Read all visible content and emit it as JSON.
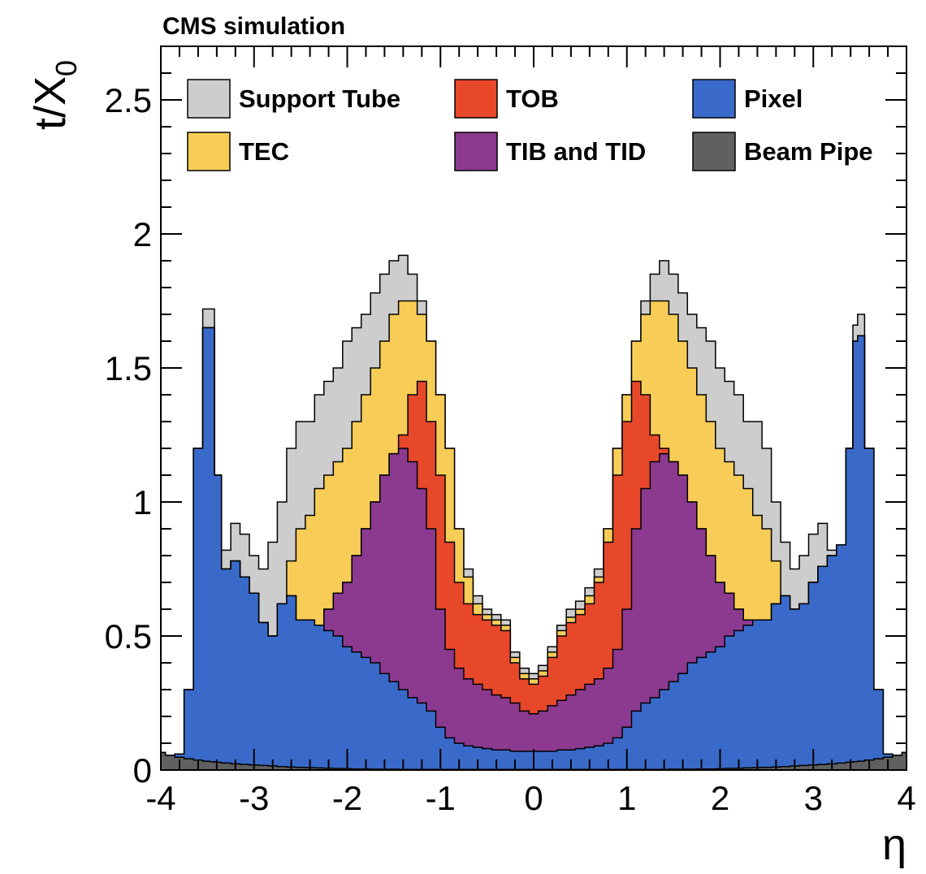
{
  "chart_data": {
    "type": "area",
    "stacked": true,
    "title": "CMS simulation",
    "xlabel": "η",
    "ylabel": {
      "main": "t/X",
      "subscript": "0"
    },
    "xlim": [
      -4,
      4
    ],
    "ylim": [
      0,
      2.7
    ],
    "x_tick_labels": [
      "-4",
      "-3",
      "-2",
      "-1",
      "0",
      "1",
      "2",
      "3",
      "4"
    ],
    "y_tick_labels": [
      "0",
      "0.5",
      "1",
      "1.5",
      "2",
      "2.5"
    ],
    "y_tick_values": [
      0,
      0.5,
      1,
      1.5,
      2,
      2.5
    ],
    "grid": false,
    "legend_position": "top",
    "x": [
      -4.0,
      -3.9,
      -3.8,
      -3.7,
      -3.6,
      -3.5,
      -3.45,
      -3.4,
      -3.3,
      -3.2,
      -3.1,
      -3.0,
      -2.9,
      -2.8,
      -2.7,
      -2.6,
      -2.5,
      -2.4,
      -2.3,
      -2.2,
      -2.1,
      -2.0,
      -1.9,
      -1.8,
      -1.7,
      -1.6,
      -1.5,
      -1.4,
      -1.3,
      -1.2,
      -1.1,
      -1.0,
      -0.9,
      -0.8,
      -0.7,
      -0.6,
      -0.5,
      -0.4,
      -0.3,
      -0.2,
      -0.1,
      0.0,
      0.1,
      0.2,
      0.3,
      0.4,
      0.5,
      0.6,
      0.7,
      0.8,
      0.9,
      1.0,
      1.1,
      1.2,
      1.3,
      1.4,
      1.5,
      1.6,
      1.7,
      1.8,
      1.9,
      2.0,
      2.1,
      2.2,
      2.3,
      2.4,
      2.5,
      2.6,
      2.7,
      2.8,
      2.9,
      3.0,
      3.1,
      3.2,
      3.3,
      3.4,
      3.45,
      3.5,
      3.6,
      3.7,
      3.8,
      3.9,
      4.0
    ],
    "series": [
      {
        "name": "Beam Pipe",
        "color": "#606060",
        "cumulative": [
          0.065,
          0.055,
          0.048,
          0.042,
          0.037,
          0.033,
          0.031,
          0.029,
          0.026,
          0.023,
          0.021,
          0.019,
          0.017,
          0.015,
          0.013,
          0.011,
          0.01,
          0.009,
          0.008,
          0.007,
          0.006,
          0.005,
          0.004,
          0.004,
          0.003,
          0.003,
          0.003,
          0.002,
          0.002,
          0.002,
          0.002,
          0.002,
          0.002,
          0.002,
          0.002,
          0.002,
          0.002,
          0.002,
          0.002,
          0.002,
          0.002,
          0.002,
          0.002,
          0.002,
          0.002,
          0.002,
          0.002,
          0.002,
          0.002,
          0.002,
          0.002,
          0.002,
          0.002,
          0.002,
          0.002,
          0.002,
          0.003,
          0.003,
          0.003,
          0.004,
          0.004,
          0.005,
          0.006,
          0.007,
          0.008,
          0.009,
          0.01,
          0.011,
          0.013,
          0.015,
          0.017,
          0.019,
          0.021,
          0.023,
          0.026,
          0.029,
          0.031,
          0.033,
          0.037,
          0.042,
          0.048,
          0.055,
          0.065
        ]
      },
      {
        "name": "Pixel",
        "color": "#3a6ac9",
        "cumulative": [
          0.065,
          0.055,
          0.06,
          0.3,
          1.2,
          1.65,
          1.65,
          1.1,
          0.75,
          0.78,
          0.72,
          0.66,
          0.55,
          0.5,
          0.62,
          0.65,
          0.56,
          0.56,
          0.54,
          0.52,
          0.5,
          0.46,
          0.44,
          0.42,
          0.4,
          0.36,
          0.33,
          0.3,
          0.27,
          0.25,
          0.22,
          0.16,
          0.12,
          0.1,
          0.09,
          0.085,
          0.08,
          0.075,
          0.075,
          0.07,
          0.07,
          0.07,
          0.07,
          0.07,
          0.075,
          0.075,
          0.08,
          0.085,
          0.09,
          0.1,
          0.12,
          0.16,
          0.22,
          0.25,
          0.27,
          0.3,
          0.33,
          0.36,
          0.4,
          0.42,
          0.44,
          0.46,
          0.5,
          0.52,
          0.54,
          0.56,
          0.56,
          0.62,
          0.65,
          0.6,
          0.62,
          0.7,
          0.76,
          0.8,
          0.84,
          1.2,
          1.6,
          1.62,
          1.2,
          0.3,
          0.06,
          0.055,
          0.065
        ]
      },
      {
        "name": "TIB and TID",
        "color": "#8b3a90",
        "cumulative": [
          0.065,
          0.055,
          0.06,
          0.3,
          1.2,
          1.65,
          1.65,
          1.1,
          0.75,
          0.78,
          0.72,
          0.66,
          0.55,
          0.5,
          0.62,
          0.65,
          0.56,
          0.56,
          0.54,
          0.6,
          0.66,
          0.7,
          0.8,
          0.9,
          1.0,
          1.1,
          1.18,
          1.2,
          1.15,
          1.05,
          0.9,
          0.6,
          0.45,
          0.38,
          0.34,
          0.32,
          0.3,
          0.28,
          0.27,
          0.25,
          0.22,
          0.21,
          0.22,
          0.24,
          0.26,
          0.28,
          0.3,
          0.32,
          0.34,
          0.38,
          0.45,
          0.6,
          0.9,
          1.05,
          1.15,
          1.18,
          1.15,
          1.1,
          1.0,
          0.9,
          0.8,
          0.7,
          0.66,
          0.6,
          0.56,
          0.56,
          0.56,
          0.62,
          0.65,
          0.6,
          0.62,
          0.7,
          0.76,
          0.8,
          0.84,
          1.2,
          1.6,
          1.62,
          1.2,
          0.3,
          0.06,
          0.055,
          0.065
        ]
      },
      {
        "name": "TOB",
        "color": "#e8482a",
        "cumulative": [
          0.065,
          0.055,
          0.06,
          0.3,
          1.2,
          1.65,
          1.65,
          1.1,
          0.75,
          0.78,
          0.72,
          0.66,
          0.55,
          0.5,
          0.62,
          0.65,
          0.56,
          0.56,
          0.54,
          0.6,
          0.66,
          0.7,
          0.8,
          0.9,
          1.0,
          1.1,
          1.18,
          1.25,
          1.4,
          1.45,
          1.3,
          1.1,
          0.85,
          0.7,
          0.62,
          0.58,
          0.56,
          0.54,
          0.52,
          0.4,
          0.34,
          0.32,
          0.35,
          0.42,
          0.5,
          0.55,
          0.58,
          0.62,
          0.7,
          0.85,
          1.1,
          1.3,
          1.45,
          1.4,
          1.25,
          1.2,
          1.15,
          1.1,
          1.0,
          0.9,
          0.8,
          0.7,
          0.66,
          0.6,
          0.56,
          0.56,
          0.56,
          0.62,
          0.65,
          0.6,
          0.62,
          0.7,
          0.76,
          0.8,
          0.84,
          1.2,
          1.6,
          1.62,
          1.2,
          0.3,
          0.06,
          0.055,
          0.065
        ]
      },
      {
        "name": "TEC",
        "color": "#f8cd57",
        "cumulative": [
          0.065,
          0.055,
          0.06,
          0.3,
          1.2,
          1.65,
          1.65,
          1.1,
          0.75,
          0.78,
          0.72,
          0.66,
          0.55,
          0.5,
          0.62,
          0.78,
          0.9,
          0.95,
          1.05,
          1.1,
          1.15,
          1.2,
          1.3,
          1.4,
          1.5,
          1.6,
          1.7,
          1.75,
          1.75,
          1.7,
          1.6,
          1.4,
          1.2,
          0.9,
          0.72,
          0.62,
          0.58,
          0.56,
          0.54,
          0.42,
          0.36,
          0.34,
          0.37,
          0.44,
          0.52,
          0.57,
          0.6,
          0.65,
          0.72,
          0.9,
          1.2,
          1.4,
          1.6,
          1.7,
          1.75,
          1.75,
          1.7,
          1.6,
          1.5,
          1.4,
          1.3,
          1.2,
          1.15,
          1.1,
          1.05,
          0.95,
          0.9,
          0.78,
          0.62,
          0.5,
          0.62,
          0.7,
          0.76,
          0.8,
          0.84,
          1.2,
          1.6,
          1.62,
          1.2,
          0.3,
          0.06,
          0.055,
          0.065
        ]
      },
      {
        "name": "Support Tube",
        "color": "#cdcdcd",
        "cumulative": [
          0.065,
          0.055,
          0.06,
          0.3,
          1.2,
          1.72,
          1.72,
          1.1,
          0.82,
          0.92,
          0.88,
          0.8,
          0.75,
          0.85,
          1.0,
          1.2,
          1.3,
          1.3,
          1.4,
          1.45,
          1.5,
          1.6,
          1.65,
          1.7,
          1.78,
          1.85,
          1.9,
          1.92,
          1.85,
          1.75,
          1.6,
          1.4,
          1.2,
          0.9,
          0.75,
          0.65,
          0.6,
          0.58,
          0.56,
          0.44,
          0.38,
          0.36,
          0.39,
          0.46,
          0.54,
          0.6,
          0.63,
          0.68,
          0.75,
          0.9,
          1.2,
          1.4,
          1.6,
          1.75,
          1.85,
          1.9,
          1.85,
          1.78,
          1.7,
          1.65,
          1.6,
          1.5,
          1.45,
          1.4,
          1.3,
          1.3,
          1.2,
          1.0,
          0.85,
          0.75,
          0.8,
          0.88,
          0.92,
          0.82,
          0.84,
          1.2,
          1.66,
          1.7,
          1.2,
          0.3,
          0.06,
          0.055,
          0.065
        ]
      }
    ],
    "legend": [
      {
        "label": "Support Tube",
        "color": "#cdcdcd"
      },
      {
        "label": "TOB",
        "color": "#e8482a"
      },
      {
        "label": "Pixel",
        "color": "#3a6ac9"
      },
      {
        "label": "TEC",
        "color": "#f8cd57"
      },
      {
        "label": "TIB and TID",
        "color": "#8b3a90"
      },
      {
        "label": "Beam Pipe",
        "color": "#606060"
      }
    ]
  }
}
